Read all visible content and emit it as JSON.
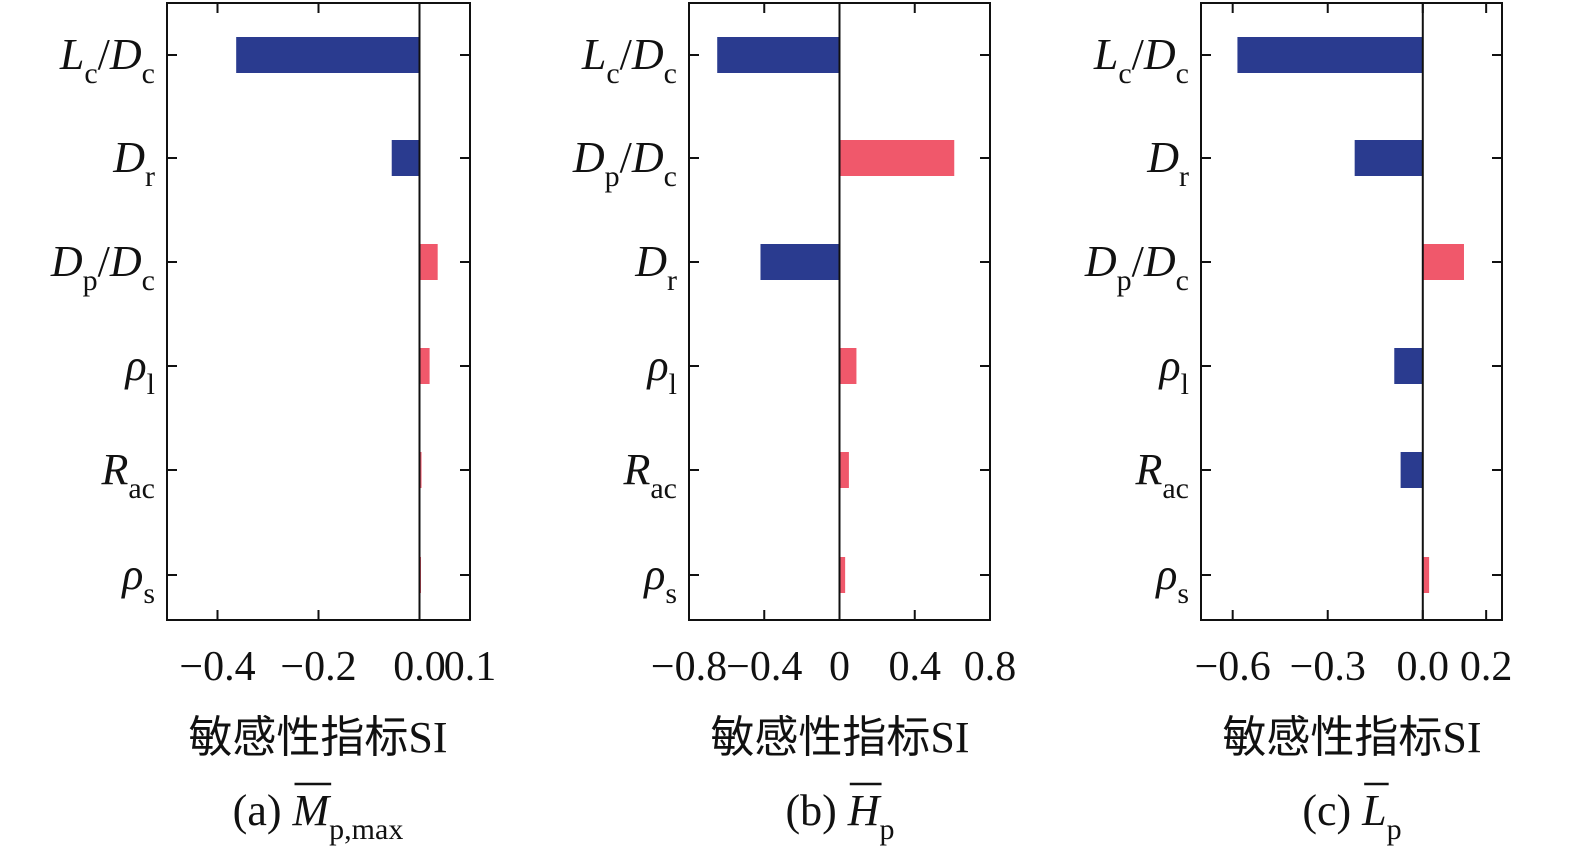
{
  "colors": {
    "negative": "#2a3b8f",
    "positive": "#f0586b",
    "axis": "#111111"
  },
  "chart_data": [
    {
      "type": "bar",
      "orientation": "horizontal",
      "caption": {
        "prefix": "(a)",
        "variable": "M",
        "subscript": "p,max",
        "overline": true
      },
      "xlabel": "敏感性指标SI",
      "xlim": [
        -0.5,
        0.1
      ],
      "xticks": [
        -0.4,
        -0.2,
        0.0,
        0.1
      ],
      "xtick_labels": [
        "−0.4",
        "−0.2",
        "0.0",
        "0.1"
      ],
      "categories": [
        {
          "parts": [
            {
              "t": "L"
            },
            {
              "t": "c",
              "sub": true
            },
            {
              "t": "/",
              "plain": true
            },
            {
              "t": "D"
            },
            {
              "t": "c",
              "sub": true
            }
          ]
        },
        {
          "parts": [
            {
              "t": "D"
            },
            {
              "t": "r",
              "sub": true
            }
          ]
        },
        {
          "parts": [
            {
              "t": "D"
            },
            {
              "t": "p",
              "sub": true
            },
            {
              "t": "/",
              "plain": true
            },
            {
              "t": "D"
            },
            {
              "t": "c",
              "sub": true
            }
          ]
        },
        {
          "parts": [
            {
              "t": "ρ"
            },
            {
              "t": "l",
              "sub": true
            }
          ]
        },
        {
          "parts": [
            {
              "t": "R"
            },
            {
              "t": "ac",
              "sub": true
            }
          ]
        },
        {
          "parts": [
            {
              "t": "ρ"
            },
            {
              "t": "s",
              "sub": true
            }
          ]
        }
      ],
      "values": [
        -0.363,
        -0.055,
        0.036,
        0.02,
        0.004,
        0.002
      ],
      "grid": false
    },
    {
      "type": "bar",
      "orientation": "horizontal",
      "caption": {
        "prefix": "(b)",
        "variable": "H",
        "subscript": "p",
        "overline": true
      },
      "xlabel": "敏感性指标SI",
      "xlim": [
        -0.8,
        0.8
      ],
      "xticks": [
        -0.8,
        -0.4,
        0.0,
        0.4,
        0.8
      ],
      "xtick_labels": [
        "−0.8",
        "−0.4",
        "0",
        "0.4",
        "0.8"
      ],
      "categories": [
        {
          "parts": [
            {
              "t": "L"
            },
            {
              "t": "c",
              "sub": true
            },
            {
              "t": "/",
              "plain": true
            },
            {
              "t": "D"
            },
            {
              "t": "c",
              "sub": true
            }
          ]
        },
        {
          "parts": [
            {
              "t": "D"
            },
            {
              "t": "p",
              "sub": true
            },
            {
              "t": "/",
              "plain": true
            },
            {
              "t": "D"
            },
            {
              "t": "c",
              "sub": true
            }
          ]
        },
        {
          "parts": [
            {
              "t": "D"
            },
            {
              "t": "r",
              "sub": true
            }
          ]
        },
        {
          "parts": [
            {
              "t": "ρ"
            },
            {
              "t": "l",
              "sub": true
            }
          ]
        },
        {
          "parts": [
            {
              "t": "R"
            },
            {
              "t": "ac",
              "sub": true
            }
          ]
        },
        {
          "parts": [
            {
              "t": "ρ"
            },
            {
              "t": "s",
              "sub": true
            }
          ]
        }
      ],
      "values": [
        -0.65,
        0.61,
        -0.42,
        0.09,
        0.05,
        0.03
      ],
      "grid": false
    },
    {
      "type": "bar",
      "orientation": "horizontal",
      "caption": {
        "prefix": "(c)",
        "variable": "L",
        "subscript": "p",
        "overline": true
      },
      "xlabel": "敏感性指标SI",
      "xlim": [
        -0.7,
        0.25
      ],
      "xticks": [
        -0.6,
        -0.3,
        0.0,
        0.2
      ],
      "xtick_labels": [
        "−0.6",
        "−0.3",
        "0.0",
        "0.2"
      ],
      "categories": [
        {
          "parts": [
            {
              "t": "L"
            },
            {
              "t": "c",
              "sub": true
            },
            {
              "t": "/",
              "plain": true
            },
            {
              "t": "D"
            },
            {
              "t": "c",
              "sub": true
            }
          ]
        },
        {
          "parts": [
            {
              "t": "D"
            },
            {
              "t": "r",
              "sub": true
            }
          ]
        },
        {
          "parts": [
            {
              "t": "D"
            },
            {
              "t": "p",
              "sub": true
            },
            {
              "t": "/",
              "plain": true
            },
            {
              "t": "D"
            },
            {
              "t": "c",
              "sub": true
            }
          ]
        },
        {
          "parts": [
            {
              "t": "ρ"
            },
            {
              "t": "l",
              "sub": true
            }
          ]
        },
        {
          "parts": [
            {
              "t": "R"
            },
            {
              "t": "ac",
              "sub": true
            }
          ]
        },
        {
          "parts": [
            {
              "t": "ρ"
            },
            {
              "t": "s",
              "sub": true
            }
          ]
        }
      ],
      "values": [
        -0.585,
        -0.215,
        0.13,
        -0.09,
        -0.07,
        0.02
      ],
      "grid": false
    }
  ]
}
